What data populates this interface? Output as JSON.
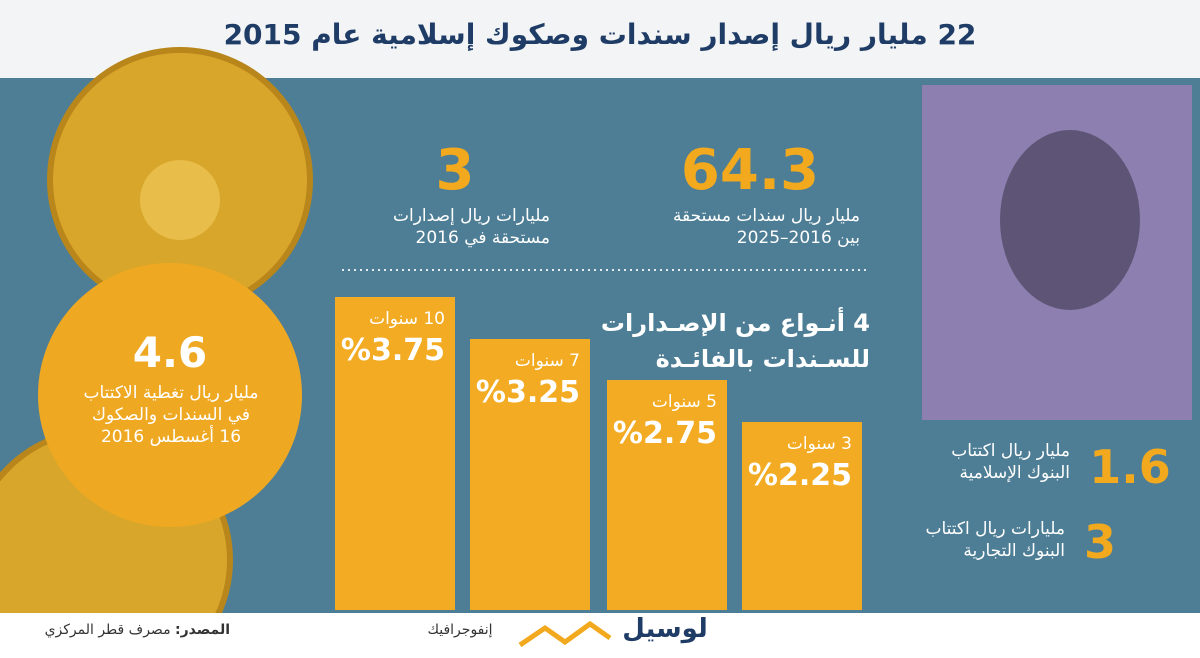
{
  "header": {
    "title": "22 مليار ريال إصدار سندات وصكوك إسلامية عام 2015"
  },
  "stats": [
    {
      "value": "64.3",
      "lines": [
        "مليار ريال سندات مستحقة",
        "بين 2016–2025"
      ]
    },
    {
      "value": "3",
      "lines": [
        "مليارات ريال إصدارات",
        "مستحقة في 2016"
      ]
    }
  ],
  "coverage": {
    "value": "4.6",
    "lines": [
      "مليار ريال تغطية الاكتتاب",
      "في السندات والصكوك",
      "16 أغسطس 2016"
    ]
  },
  "rates": {
    "title_lines": [
      "4 أنـواع من الإصـدارات",
      "للسـندات بالفائـدة"
    ],
    "items": [
      {
        "term": "10 سنوات",
        "value": 3.75,
        "value_label": "%3.75"
      },
      {
        "term": "7 سنوات",
        "value": 3.25,
        "value_label": "%3.25"
      },
      {
        "term": "5 سنوات",
        "value": 2.75,
        "value_label": "%2.75"
      },
      {
        "term": "3 سنوات",
        "value": 2.25,
        "value_label": "%2.25"
      }
    ]
  },
  "subscriptions": [
    {
      "value": "1.6",
      "lines": [
        "مليار ريال اكتتاب",
        "البنوك الإسلامية"
      ]
    },
    {
      "value": "3",
      "lines": [
        "مليارات ريال اكتتاب",
        "البنوك التجارية"
      ]
    }
  ],
  "footer": {
    "source_label": "المصدر:",
    "source": "مصرف قطر المركزي",
    "section": "إنفوجرافيك",
    "brand": "لوسيل"
  }
}
